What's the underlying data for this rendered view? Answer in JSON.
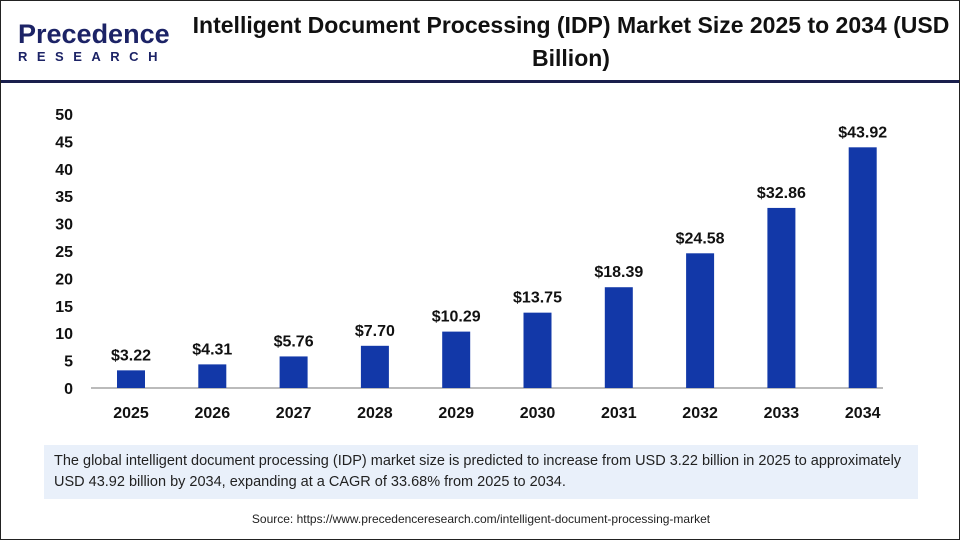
{
  "logo": {
    "line1": "Precedence",
    "line2": "RESEARCH"
  },
  "title": "Intelligent Document Processing (IDP) Market Size 2025 to 2034 (USD Billion)",
  "note": "The global intelligent document processing (IDP) market size is predicted to increase from USD 3.22 billion in 2025 to approximately USD 43.92 billion by 2034, expanding at a CAGR of 33.68% from 2025 to 2034.",
  "source": "Source: https://www.precedenceresearch.com/intelligent-document-processing-market",
  "chart_data": {
    "type": "bar",
    "title": "Intelligent Document Processing (IDP) Market Size 2025 to 2034 (USD Billion)",
    "categories": [
      "2025",
      "2026",
      "2027",
      "2028",
      "2029",
      "2030",
      "2031",
      "2032",
      "2033",
      "2034"
    ],
    "values": [
      3.22,
      4.31,
      5.76,
      7.7,
      10.29,
      13.75,
      18.39,
      24.58,
      32.86,
      43.92
    ],
    "data_labels": [
      "$3.22",
      "$4.31",
      "$5.76",
      "$7.70",
      "$10.29",
      "$13.75",
      "$18.39",
      "$24.58",
      "$32.86",
      "$43.92"
    ],
    "yticks": [
      "0",
      "5",
      "10",
      "15",
      "20",
      "25",
      "30",
      "35",
      "40",
      "45",
      "50"
    ],
    "ylim": [
      0,
      50
    ],
    "grid": false,
    "bar_color": "#1238a8"
  }
}
